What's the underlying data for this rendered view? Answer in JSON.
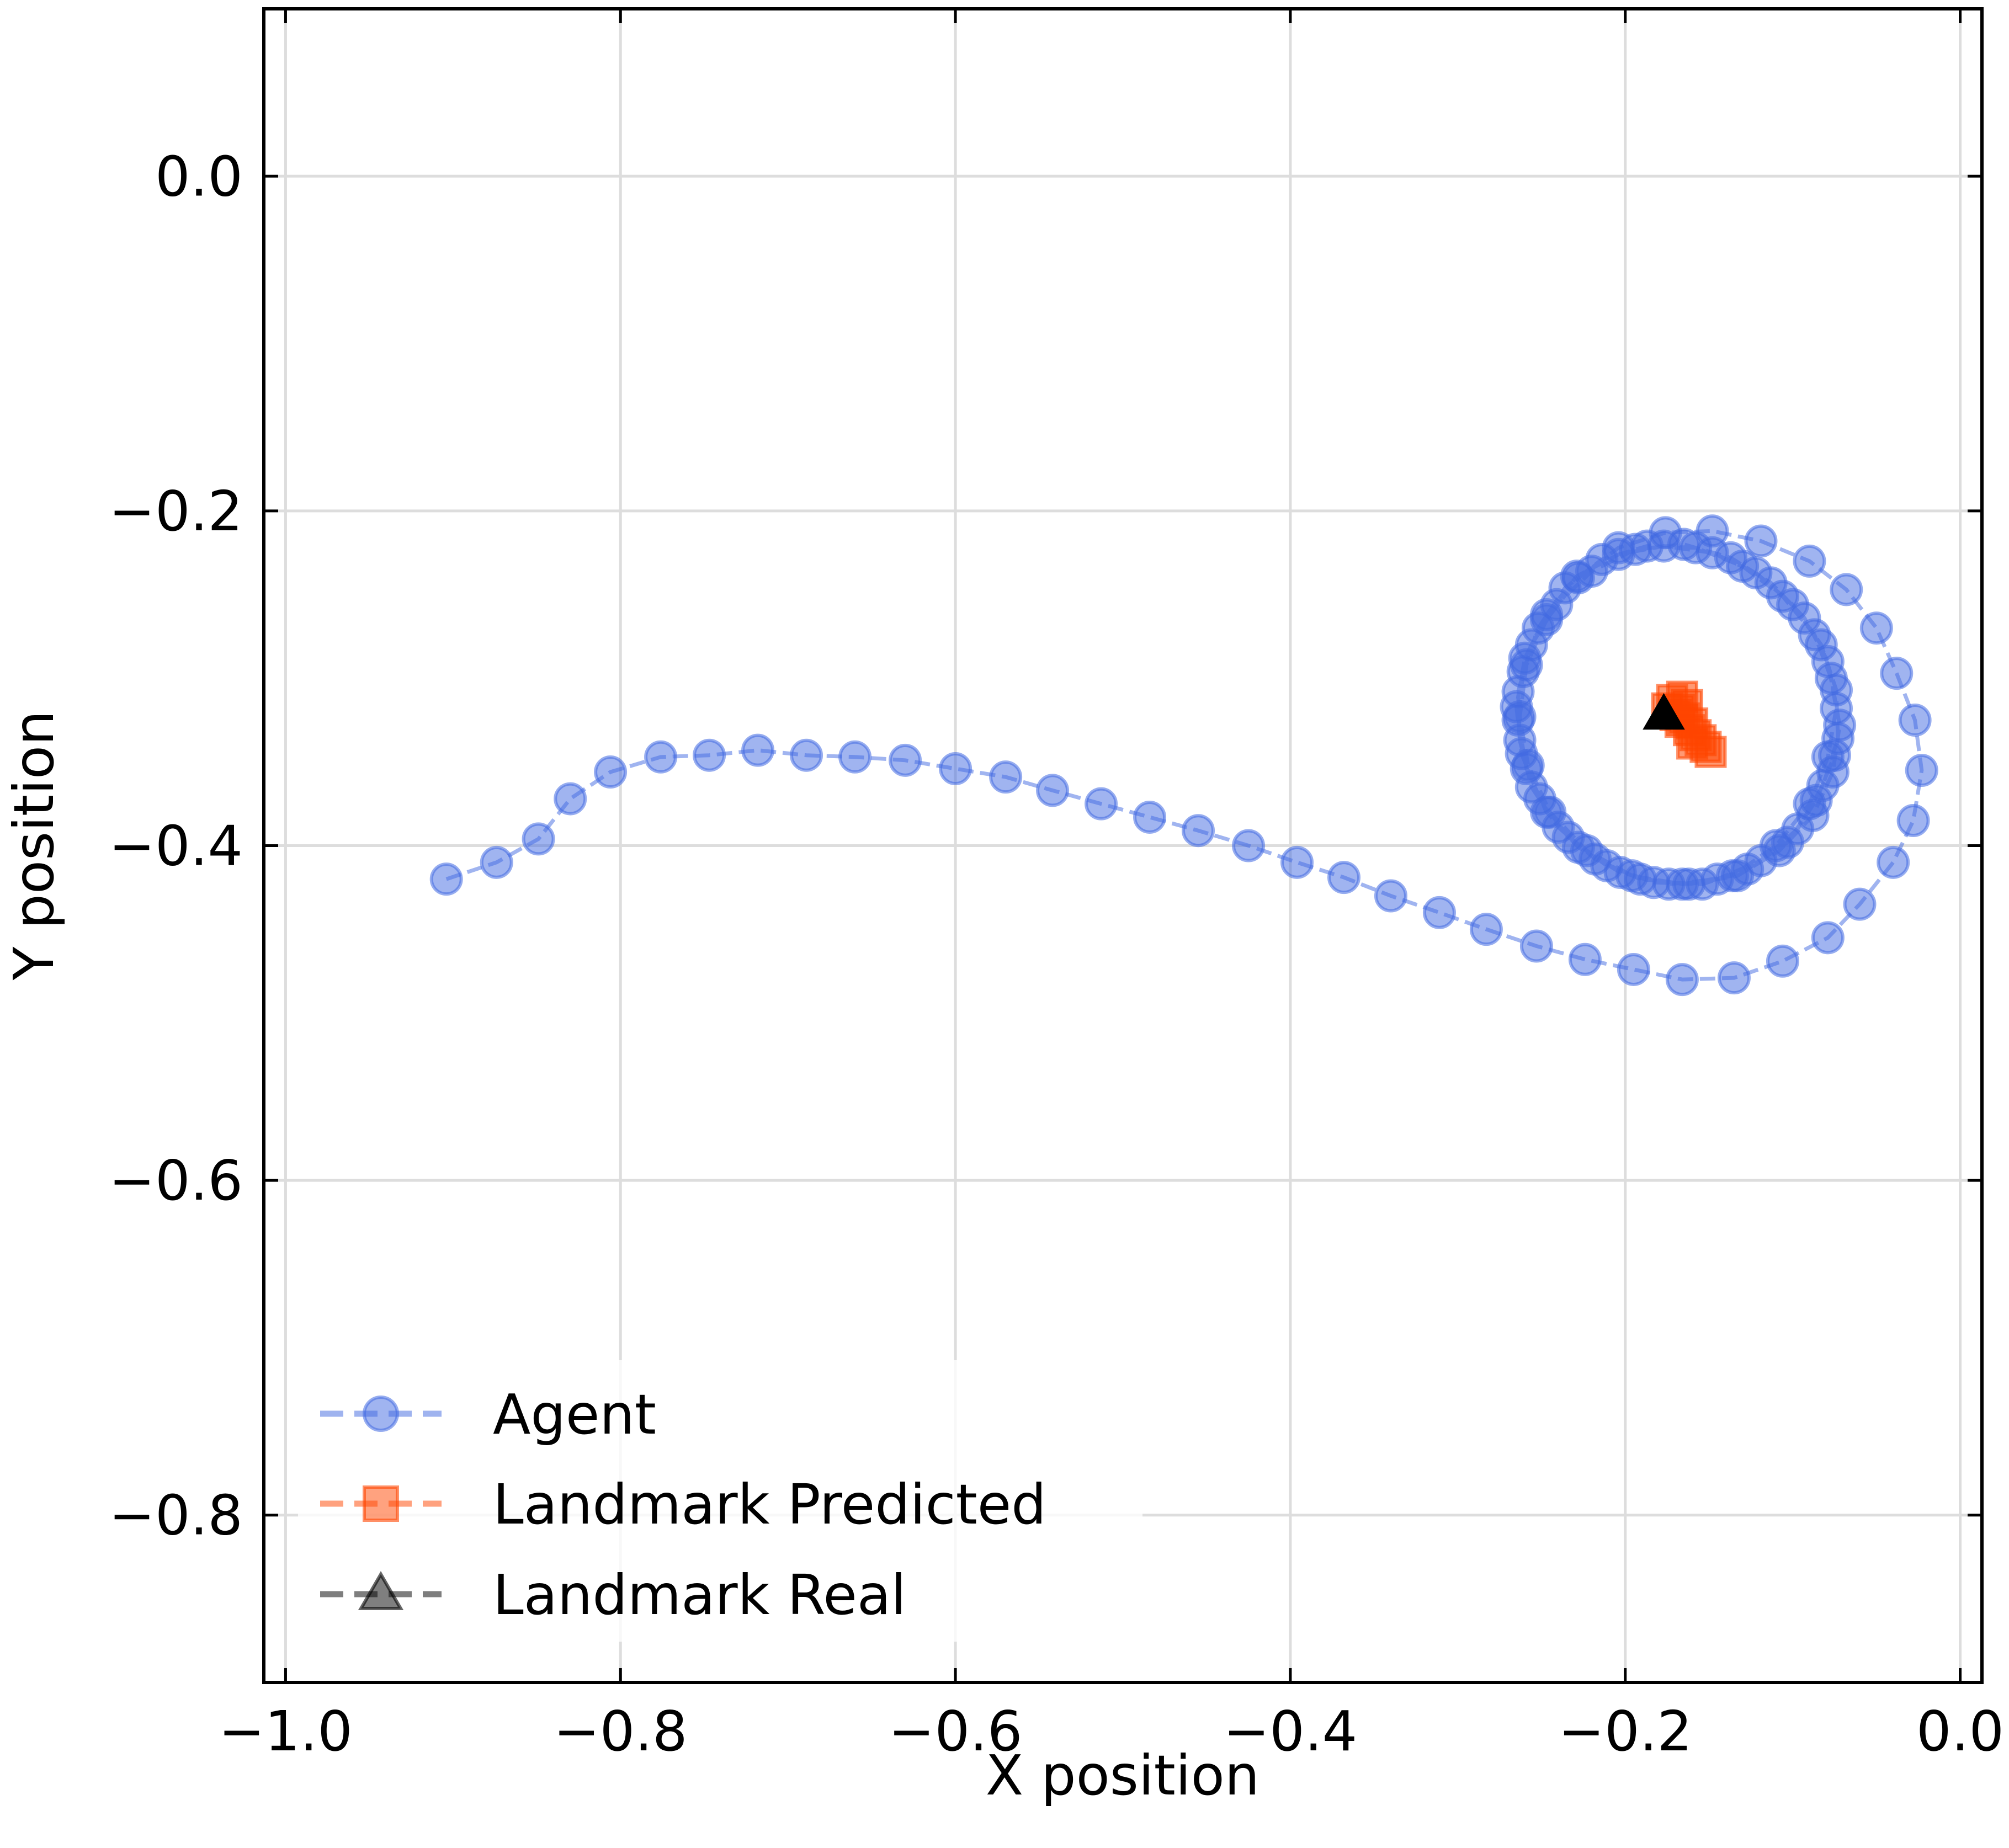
{
  "chart_data": {
    "type": "scatter",
    "xlabel": "X position",
    "ylabel": "Y position",
    "xlim": [
      -1.013,
      0.013
    ],
    "ylim": [
      -0.9,
      0.1
    ],
    "xticks": [
      -1.0,
      -0.8,
      -0.6,
      -0.4,
      -0.2,
      0.0
    ],
    "xtick_labels": [
      "−1.0",
      "−0.8",
      "−0.6",
      "−0.4",
      "−0.2",
      "0.0"
    ],
    "yticks": [
      0.0,
      -0.2,
      -0.4,
      -0.6,
      -0.8
    ],
    "ytick_labels": [
      "0.0",
      "−0.2",
      "−0.4",
      "−0.6",
      "−0.8"
    ],
    "grid": true,
    "legend_position": "bottom-left",
    "series": [
      {
        "name": "Agent",
        "marker": "circle",
        "line": "dashed",
        "color": "#4169E1",
        "alpha": 0.5,
        "path": [
          [
            -0.904,
            -0.42
          ],
          [
            -0.874,
            -0.41
          ],
          [
            -0.849,
            -0.396
          ],
          [
            -0.83,
            -0.372
          ],
          [
            -0.806,
            -0.356
          ],
          [
            -0.776,
            -0.347
          ],
          [
            -0.747,
            -0.346
          ],
          [
            -0.718,
            -0.343
          ],
          [
            -0.689,
            -0.346
          ],
          [
            -0.66,
            -0.347
          ],
          [
            -0.63,
            -0.349
          ],
          [
            -0.6,
            -0.354
          ],
          [
            -0.57,
            -0.359
          ],
          [
            -0.542,
            -0.367
          ],
          [
            -0.513,
            -0.375
          ],
          [
            -0.484,
            -0.383
          ],
          [
            -0.455,
            -0.391
          ],
          [
            -0.425,
            -0.4
          ],
          [
            -0.396,
            -0.41
          ],
          [
            -0.368,
            -0.419
          ],
          [
            -0.34,
            -0.43
          ],
          [
            -0.311,
            -0.44
          ],
          [
            -0.283,
            -0.45
          ],
          [
            -0.253,
            -0.46
          ],
          [
            -0.224,
            -0.468
          ],
          [
            -0.195,
            -0.474
          ],
          [
            -0.166,
            -0.48
          ],
          [
            -0.135,
            -0.479
          ],
          [
            -0.106,
            -0.469
          ],
          [
            -0.079,
            -0.455
          ],
          [
            -0.06,
            -0.435
          ],
          [
            -0.04,
            -0.41
          ],
          [
            -0.028,
            -0.385
          ],
          [
            -0.023,
            -0.355
          ],
          [
            -0.027,
            -0.325
          ],
          [
            -0.038,
            -0.297
          ],
          [
            -0.05,
            -0.27
          ],
          [
            -0.068,
            -0.247
          ],
          [
            -0.09,
            -0.23
          ],
          [
            -0.119,
            -0.218
          ],
          [
            -0.148,
            -0.212
          ],
          [
            -0.176,
            -0.213
          ],
          [
            -0.204,
            -0.222
          ],
          [
            -0.228,
            -0.24
          ],
          [
            -0.247,
            -0.265
          ],
          [
            -0.259,
            -0.292
          ],
          [
            -0.263,
            -0.323
          ],
          [
            -0.258,
            -0.352
          ],
          [
            -0.245,
            -0.38
          ],
          [
            -0.223,
            -0.403
          ],
          [
            -0.196,
            -0.418
          ],
          [
            -0.166,
            -0.423
          ],
          [
            -0.136,
            -0.418
          ],
          [
            -0.11,
            -0.4
          ],
          [
            -0.09,
            -0.375
          ],
          [
            -0.079,
            -0.347
          ],
          [
            -0.074,
            -0.318
          ],
          [
            -0.079,
            -0.29
          ],
          [
            -0.093,
            -0.264
          ],
          [
            -0.113,
            -0.243
          ],
          [
            -0.137,
            -0.228
          ],
          [
            -0.165,
            -0.22
          ],
          [
            -0.194,
            -0.223
          ],
          [
            -0.22,
            -0.236
          ],
          [
            -0.241,
            -0.256
          ],
          [
            -0.256,
            -0.28
          ],
          [
            -0.264,
            -0.308
          ],
          [
            -0.263,
            -0.337
          ],
          [
            -0.256,
            -0.365
          ],
          [
            -0.24,
            -0.389
          ],
          [
            -0.218,
            -0.408
          ],
          [
            -0.191,
            -0.42
          ],
          [
            -0.162,
            -0.423
          ],
          [
            -0.133,
            -0.418
          ],
          [
            -0.108,
            -0.403
          ],
          [
            -0.088,
            -0.382
          ],
          [
            -0.076,
            -0.356
          ],
          [
            -0.072,
            -0.328
          ],
          [
            -0.077,
            -0.3
          ],
          [
            -0.087,
            -0.274
          ],
          [
            -0.106,
            -0.251
          ],
          [
            -0.13,
            -0.233
          ],
          [
            -0.158,
            -0.222
          ],
          [
            -0.187,
            -0.221
          ],
          [
            -0.214,
            -0.229
          ],
          [
            -0.236,
            -0.246
          ],
          [
            -0.252,
            -0.27
          ],
          [
            -0.261,
            -0.296
          ],
          [
            -0.264,
            -0.325
          ],
          [
            -0.259,
            -0.354
          ],
          [
            -0.247,
            -0.38
          ],
          [
            -0.228,
            -0.401
          ],
          [
            -0.203,
            -0.416
          ],
          [
            -0.174,
            -0.423
          ],
          [
            -0.145,
            -0.42
          ],
          [
            -0.119,
            -0.409
          ],
          [
            -0.097,
            -0.39
          ],
          [
            -0.082,
            -0.364
          ],
          [
            -0.073,
            -0.336
          ],
          [
            -0.074,
            -0.307
          ],
          [
            -0.083,
            -0.28
          ],
          [
            -0.1,
            -0.256
          ],
          [
            -0.122,
            -0.237
          ],
          [
            -0.148,
            -0.225
          ],
          [
            -0.177,
            -0.221
          ],
          [
            -0.204,
            -0.226
          ],
          [
            -0.229,
            -0.239
          ],
          [
            -0.247,
            -0.262
          ],
          [
            -0.26,
            -0.288
          ],
          [
            -0.265,
            -0.317
          ],
          [
            -0.262,
            -0.345
          ],
          [
            -0.251,
            -0.372
          ],
          [
            -0.234,
            -0.395
          ],
          [
            -0.211,
            -0.412
          ],
          [
            -0.183,
            -0.422
          ],
          [
            -0.154,
            -0.423
          ],
          [
            -0.127,
            -0.414
          ],
          [
            -0.103,
            -0.398
          ],
          [
            -0.086,
            -0.373
          ],
          [
            -0.075,
            -0.346
          ]
        ]
      },
      {
        "name": "Landmark Predicted",
        "marker": "square",
        "line": "dashed",
        "color": "#FF4500",
        "alpha": 0.5,
        "points": [
          [
            -0.172,
            -0.313
          ],
          [
            -0.166,
            -0.311
          ],
          [
            -0.163,
            -0.316
          ],
          [
            -0.168,
            -0.319
          ],
          [
            -0.175,
            -0.318
          ],
          [
            -0.17,
            -0.322
          ],
          [
            -0.165,
            -0.324
          ],
          [
            -0.16,
            -0.327
          ],
          [
            -0.167,
            -0.326
          ],
          [
            -0.162,
            -0.331
          ],
          [
            -0.158,
            -0.334
          ],
          [
            -0.155,
            -0.337
          ],
          [
            -0.16,
            -0.339
          ],
          [
            -0.152,
            -0.341
          ],
          [
            -0.149,
            -0.344
          ]
        ]
      },
      {
        "name": "Landmark Real",
        "marker": "triangle",
        "line": "dashed",
        "color": "#000000",
        "alpha": 1.0,
        "points": [
          [
            -0.177,
            -0.322
          ]
        ]
      }
    ]
  }
}
